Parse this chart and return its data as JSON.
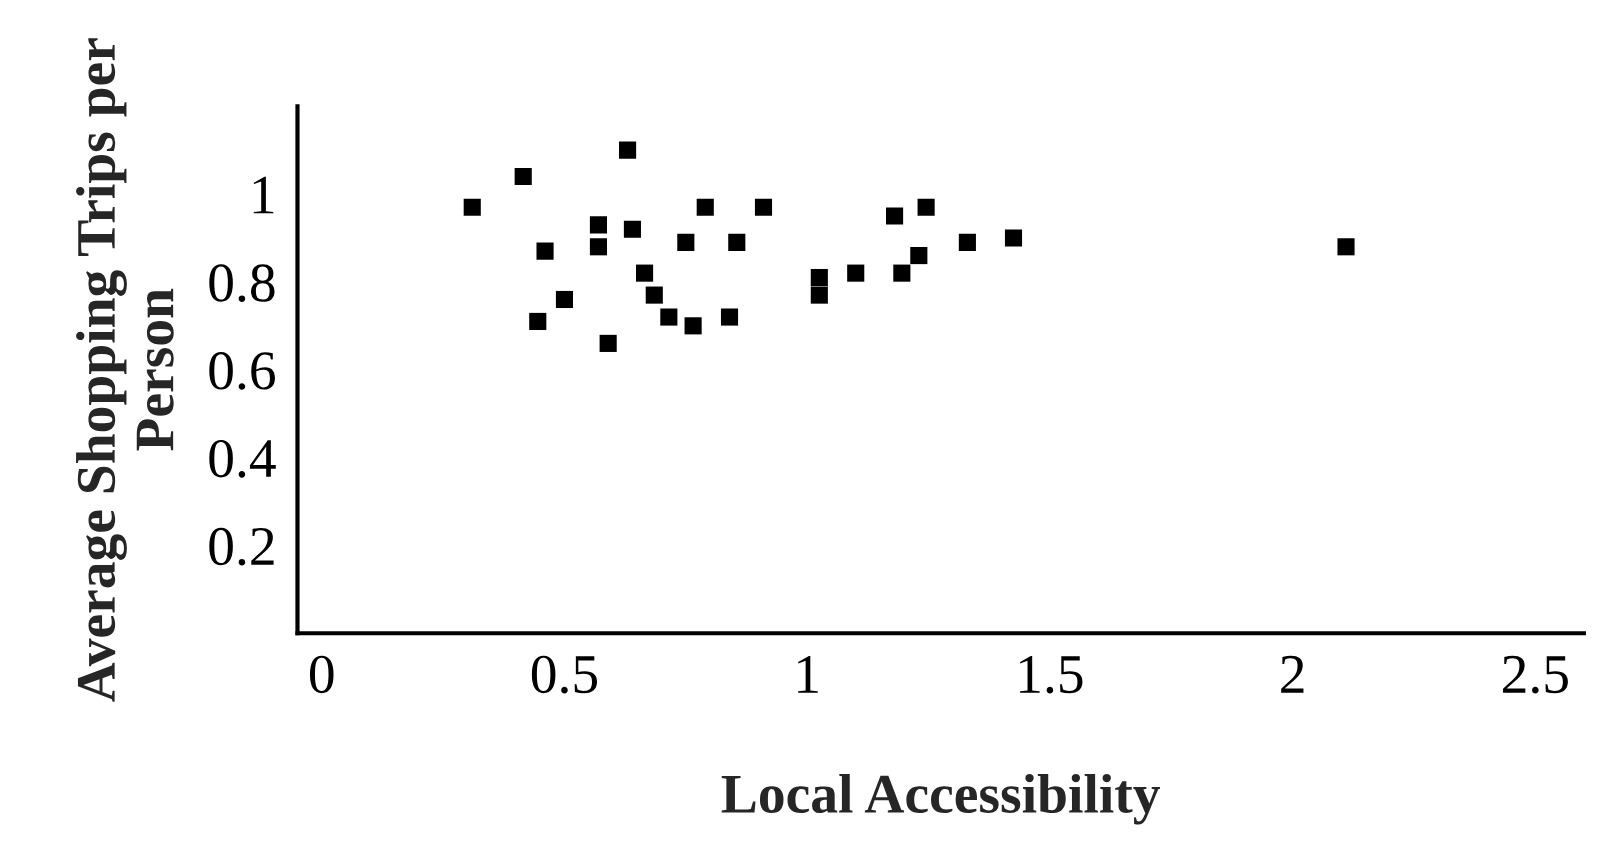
{
  "chart_data": {
    "type": "scatter",
    "xlabel": "Local Accessibility",
    "ylabel": "Average Shopping Trips per Person",
    "x": [
      0.31,
      0.415,
      0.63,
      0.46,
      0.57,
      0.57,
      0.64,
      0.79,
      0.91,
      0.75,
      0.855,
      0.5,
      0.445,
      0.59,
      0.665,
      0.685,
      0.715,
      0.765,
      0.84,
      1.025,
      1.025,
      1.1,
      1.18,
      1.245,
      1.23,
      1.195,
      1.33,
      1.425,
      2.11
    ],
    "values": [
      0.97,
      1.04,
      1.1,
      0.87,
      0.93,
      0.88,
      0.92,
      0.97,
      0.97,
      0.89,
      0.89,
      0.76,
      0.71,
      0.66,
      0.82,
      0.77,
      0.72,
      0.7,
      0.72,
      0.81,
      0.77,
      0.82,
      0.95,
      0.97,
      0.86,
      0.82,
      0.89,
      0.9,
      0.88
    ],
    "color": "#000000",
    "marker": "square",
    "grid": false,
    "legend": false,
    "xlim": [
      -0.05,
      2.6
    ],
    "xticks": [
      0,
      0.5,
      1,
      1.5,
      2,
      2.5
    ],
    "ylim": [
      0,
      1.2
    ],
    "yticks": [
      0.2,
      0.4,
      0.6,
      0.8,
      1
    ]
  }
}
